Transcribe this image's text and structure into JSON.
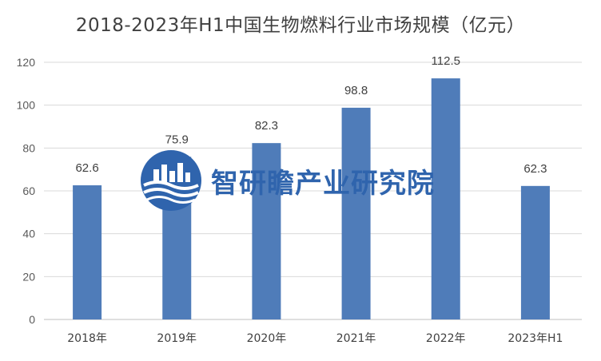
{
  "chart_data": {
    "type": "bar",
    "title": "2018-2023年H1中国生物燃料行业市场规模（亿元）",
    "categories": [
      "2018年",
      "2019年",
      "2020年",
      "2021年",
      "2022年",
      "2023年H1"
    ],
    "values": [
      62.6,
      75.9,
      82.3,
      98.8,
      112.5,
      62.3
    ],
    "data_labels": [
      "62.6",
      "75.9",
      "82.3",
      "98.8",
      "112.5",
      "62.3"
    ],
    "yticks": [
      "0",
      "20",
      "40",
      "60",
      "80",
      "100",
      "120"
    ],
    "ylim": [
      0,
      120
    ],
    "xlabel": "",
    "ylabel": "",
    "grid": true,
    "legend": "none",
    "bar_color": "#4f7cb9",
    "grid_color": "#d9d9d9"
  },
  "watermark": {
    "text": "智研瞻产业研究院",
    "color": "#2f64ad"
  }
}
